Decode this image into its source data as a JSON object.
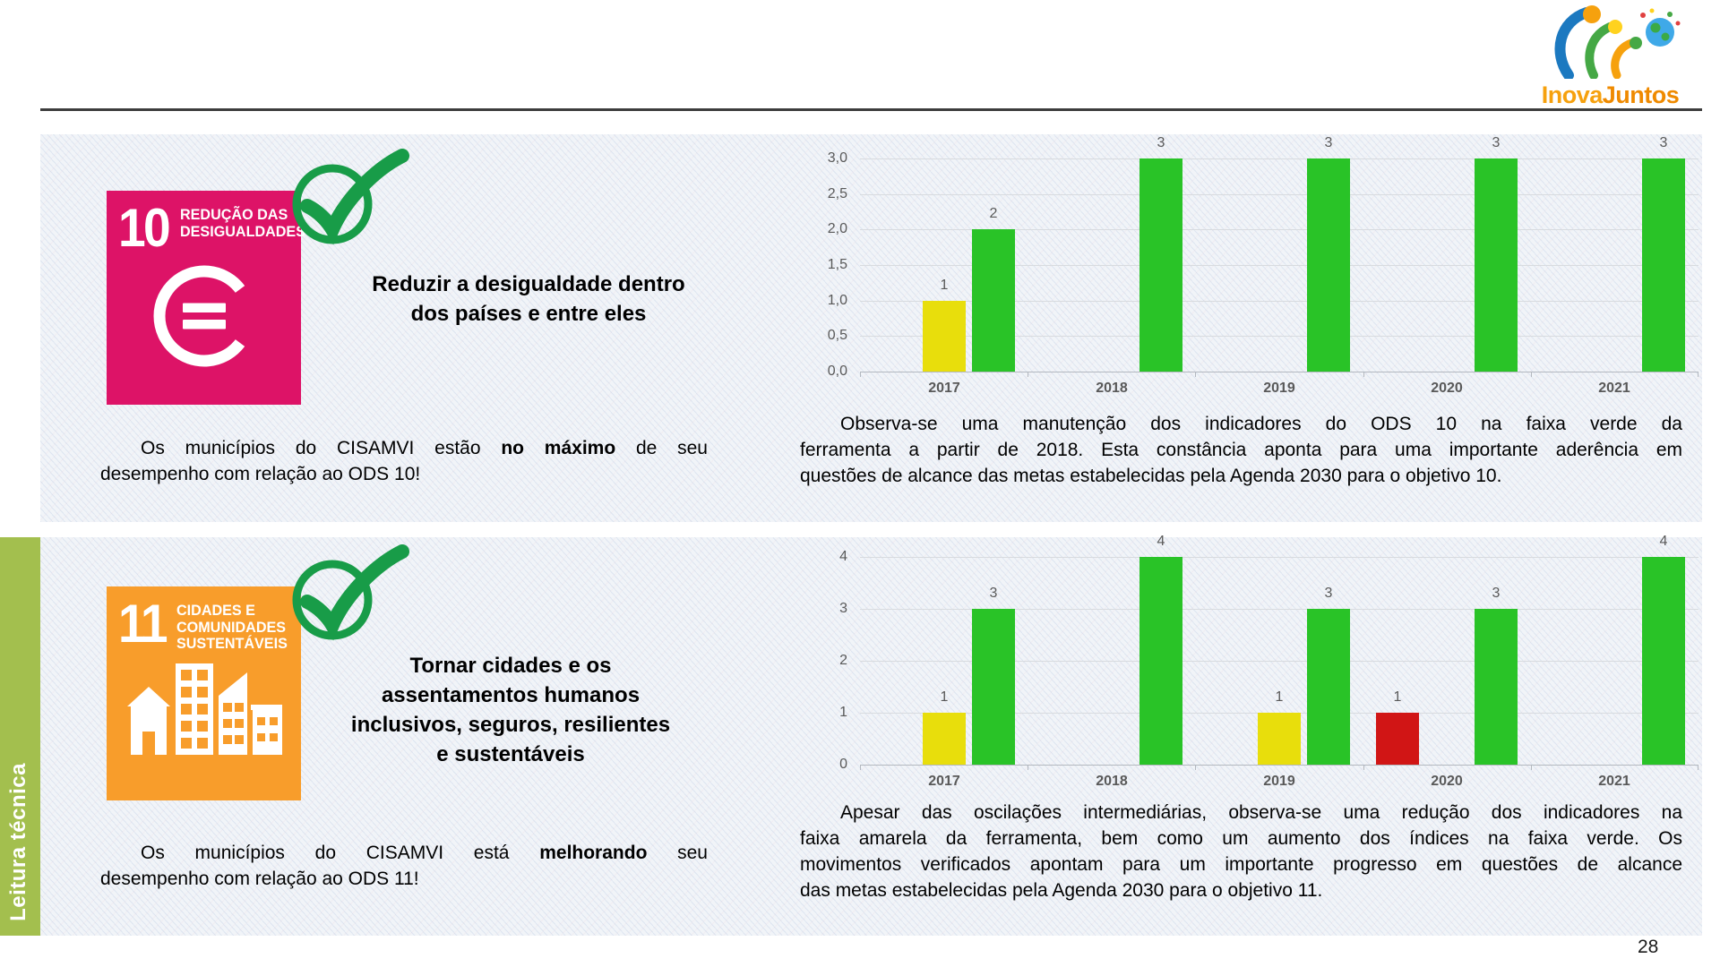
{
  "page": {
    "number": "28"
  },
  "logo": {
    "brand_inova": "Inova",
    "brand_juntos": "Juntos"
  },
  "sidebar": {
    "label": "Leitura técnica",
    "color": "#A3BF4E"
  },
  "sections": [
    {
      "icon": {
        "number": "10",
        "lines": [
          "REDUÇÃO DAS",
          "DESIGUALDADES"
        ],
        "color": "#DD1367"
      },
      "heading_lines": [
        "Reduzir a desigualdade dentro",
        "dos países e entre eles"
      ],
      "status": {
        "line1": {
          "pre": "Os municípios do CISAMVI estão ",
          "bold": "no máximo",
          "post": " de seu"
        },
        "line2": "desempenho com relação ao ODS 10!"
      },
      "analysis_lines": [
        "Observa-se uma manutenção dos indicadores do ODS 10 na faixa verde da",
        "ferramenta a partir de 2018. Esta constância aponta para uma importante aderência em",
        "questões de alcance das metas estabelecidas pela Agenda 2030 para o objetivo 10."
      ],
      "chart_data": {
        "type": "bar",
        "title": "",
        "xlabel": "",
        "ylabel": "",
        "categories": [
          "2017",
          "2018",
          "2019",
          "2020",
          "2021"
        ],
        "series": [
          {
            "name": "vermelho",
            "color": "#D11515",
            "values": [
              null,
              null,
              null,
              null,
              null
            ]
          },
          {
            "name": "amarelo",
            "color": "#E8DE0C",
            "values": [
              1,
              null,
              null,
              null,
              null
            ]
          },
          {
            "name": "verde",
            "color": "#29C327",
            "values": [
              2,
              3,
              3,
              3,
              3
            ]
          }
        ],
        "ylim": [
          0,
          3
        ],
        "ytick_labels": [
          "3,0",
          "2,5",
          "2,0",
          "1,5",
          "1,0",
          "0,5",
          "0,0"
        ],
        "grid": true,
        "legend": "none"
      }
    },
    {
      "icon": {
        "number": "11",
        "lines": [
          "CIDADES E",
          "COMUNIDADES",
          "SUSTENTÁVEIS"
        ],
        "color": "#F89D2B"
      },
      "heading_lines": [
        "Tornar cidades e os",
        "assentamentos humanos",
        "inclusivos, seguros, resilientes",
        "e sustentáveis"
      ],
      "status": {
        "line1": {
          "pre": "Os municípios do CISAMVI está ",
          "bold": "melhorando",
          "post": " seu"
        },
        "line2": "desempenho com relação ao ODS 11!"
      },
      "analysis_lines": [
        "Apesar das oscilações intermediárias, observa-se uma redução dos indicadores na",
        "faixa amarela da ferramenta, bem como um aumento dos índices na faixa verde. Os",
        "movimentos verificados apontam para um importante progresso em questões de alcance",
        "das metas estabelecidas pela Agenda 2030 para o objetivo 11."
      ],
      "chart_data": {
        "type": "bar",
        "title": "",
        "xlabel": "",
        "ylabel": "",
        "categories": [
          "2017",
          "2018",
          "2019",
          "2020",
          "2021"
        ],
        "series": [
          {
            "name": "vermelho",
            "color": "#D11515",
            "values": [
              null,
              null,
              null,
              1,
              null
            ]
          },
          {
            "name": "amarelo",
            "color": "#E8DE0C",
            "values": [
              1,
              null,
              1,
              null,
              null
            ]
          },
          {
            "name": "verde",
            "color": "#29C327",
            "values": [
              3,
              4,
              3,
              3,
              4
            ]
          }
        ],
        "ylim": [
          0,
          4
        ],
        "ytick_labels": [
          "4",
          "3",
          "2",
          "1",
          "0"
        ],
        "grid": true,
        "legend": "none"
      }
    }
  ]
}
